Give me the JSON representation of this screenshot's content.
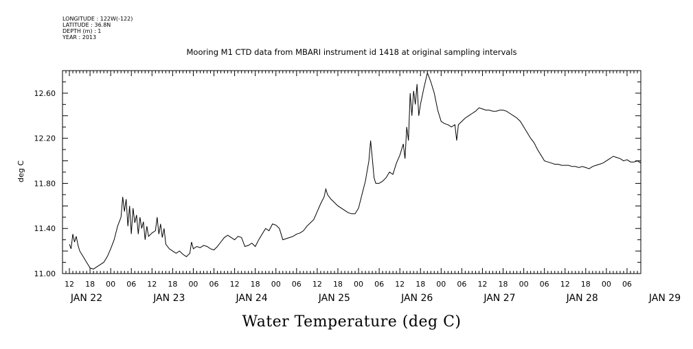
{
  "header": {
    "meta_lines": [
      "LONGITUDE : 122W(-122)",
      "LATITUDE : 36.8N",
      "DEPTH (m) : 1",
      "YEAR : 2013"
    ]
  },
  "chart_data": {
    "type": "line",
    "title": "Mooring M1 CTD data from MBARI instrument id 1418 at original sampling intervals",
    "xlabel": "Water Temperature (deg C)",
    "ylabel": "deg C",
    "x_unit": "hours since Jan 22 12:00 (2013)",
    "xlim": [
      -2,
      166
    ],
    "ylim": [
      11.0,
      12.8
    ],
    "yticks": [
      "11.00",
      "11.40",
      "11.80",
      "12.20",
      "12.60"
    ],
    "ytick_values": [
      11.0,
      11.4,
      11.8,
      12.2,
      12.6
    ],
    "xtick_labels": [
      "12",
      "18",
      "00",
      "06",
      "12",
      "18",
      "00",
      "06",
      "12",
      "18",
      "00",
      "06",
      "12",
      "18",
      "00",
      "06",
      "12",
      "18",
      "00",
      "06",
      "12",
      "18",
      "00",
      "06",
      "12",
      "18",
      "00",
      "06"
    ],
    "day_labels": [
      "JAN 22",
      "JAN 23",
      "JAN 24",
      "JAN 25",
      "JAN 26",
      "JAN 27",
      "JAN 28",
      "JAN 29"
    ],
    "grid": false,
    "line_color": "#000000",
    "series": [
      {
        "points": [
          [
            0,
            11.26
          ],
          [
            0.5,
            11.22
          ],
          [
            1,
            11.35
          ],
          [
            1.5,
            11.28
          ],
          [
            2,
            11.33
          ],
          [
            2.5,
            11.25
          ],
          [
            3,
            11.2
          ],
          [
            4,
            11.15
          ],
          [
            5,
            11.1
          ],
          [
            6,
            11.05
          ],
          [
            7,
            11.04
          ],
          [
            8,
            11.06
          ],
          [
            9,
            11.08
          ],
          [
            10,
            11.1
          ],
          [
            11,
            11.15
          ],
          [
            12,
            11.22
          ],
          [
            13,
            11.3
          ],
          [
            14,
            11.42
          ],
          [
            15,
            11.5
          ],
          [
            15.5,
            11.68
          ],
          [
            16,
            11.55
          ],
          [
            16.5,
            11.66
          ],
          [
            17,
            11.42
          ],
          [
            17.5,
            11.6
          ],
          [
            18,
            11.35
          ],
          [
            18.5,
            11.58
          ],
          [
            19,
            11.45
          ],
          [
            19.5,
            11.52
          ],
          [
            20,
            11.35
          ],
          [
            20.5,
            11.5
          ],
          [
            21,
            11.4
          ],
          [
            21.5,
            11.46
          ],
          [
            22,
            11.3
          ],
          [
            22.5,
            11.42
          ],
          [
            23,
            11.33
          ],
          [
            24,
            11.36
          ],
          [
            25,
            11.38
          ],
          [
            25.5,
            11.5
          ],
          [
            26,
            11.35
          ],
          [
            26.5,
            11.44
          ],
          [
            27,
            11.32
          ],
          [
            27.5,
            11.4
          ],
          [
            28,
            11.26
          ],
          [
            29,
            11.22
          ],
          [
            30,
            11.2
          ],
          [
            31,
            11.18
          ],
          [
            32,
            11.2
          ],
          [
            33,
            11.17
          ],
          [
            34,
            11.15
          ],
          [
            35,
            11.18
          ],
          [
            35.5,
            11.28
          ],
          [
            36,
            11.22
          ],
          [
            37,
            11.24
          ],
          [
            38,
            11.23
          ],
          [
            39,
            11.25
          ],
          [
            40,
            11.24
          ],
          [
            41,
            11.22
          ],
          [
            42,
            11.21
          ],
          [
            43,
            11.24
          ],
          [
            44,
            11.28
          ],
          [
            45,
            11.32
          ],
          [
            46,
            11.34
          ],
          [
            47,
            11.32
          ],
          [
            48,
            11.3
          ],
          [
            49,
            11.33
          ],
          [
            50,
            11.32
          ],
          [
            51,
            11.24
          ],
          [
            52,
            11.25
          ],
          [
            53,
            11.27
          ],
          [
            54,
            11.24
          ],
          [
            55,
            11.3
          ],
          [
            56,
            11.35
          ],
          [
            57,
            11.4
          ],
          [
            58,
            11.38
          ],
          [
            59,
            11.44
          ],
          [
            60,
            11.43
          ],
          [
            61,
            11.4
          ],
          [
            62,
            11.3
          ],
          [
            63,
            11.31
          ],
          [
            64,
            11.32
          ],
          [
            65,
            11.33
          ],
          [
            66,
            11.35
          ],
          [
            67,
            11.36
          ],
          [
            68,
            11.38
          ],
          [
            69,
            11.42
          ],
          [
            70,
            11.45
          ],
          [
            71,
            11.48
          ],
          [
            72,
            11.55
          ],
          [
            73,
            11.62
          ],
          [
            74,
            11.68
          ],
          [
            74.5,
            11.75
          ],
          [
            75,
            11.7
          ],
          [
            76,
            11.66
          ],
          [
            77,
            11.63
          ],
          [
            78,
            11.6
          ],
          [
            79,
            11.58
          ],
          [
            80,
            11.56
          ],
          [
            81,
            11.54
          ],
          [
            82,
            11.53
          ],
          [
            83,
            11.53
          ],
          [
            84,
            11.58
          ],
          [
            85,
            11.7
          ],
          [
            86,
            11.82
          ],
          [
            87,
            12.0
          ],
          [
            87.5,
            12.18
          ],
          [
            88,
            12.02
          ],
          [
            88.5,
            11.85
          ],
          [
            89,
            11.8
          ],
          [
            90,
            11.8
          ],
          [
            91,
            11.82
          ],
          [
            92,
            11.85
          ],
          [
            93,
            11.9
          ],
          [
            94,
            11.88
          ],
          [
            95,
            11.98
          ],
          [
            96,
            12.05
          ],
          [
            97,
            12.15
          ],
          [
            97.5,
            12.02
          ],
          [
            98,
            12.3
          ],
          [
            98.5,
            12.18
          ],
          [
            99,
            12.6
          ],
          [
            99.5,
            12.4
          ],
          [
            100,
            12.62
          ],
          [
            100.5,
            12.5
          ],
          [
            101,
            12.68
          ],
          [
            101.5,
            12.4
          ],
          [
            102,
            12.5
          ],
          [
            103,
            12.65
          ],
          [
            104,
            12.78
          ],
          [
            105,
            12.7
          ],
          [
            106,
            12.6
          ],
          [
            107,
            12.45
          ],
          [
            108,
            12.35
          ],
          [
            109,
            12.33
          ],
          [
            110,
            12.32
          ],
          [
            111,
            12.3
          ],
          [
            112,
            12.32
          ],
          [
            112.5,
            12.18
          ],
          [
            113,
            12.32
          ],
          [
            114,
            12.35
          ],
          [
            115,
            12.38
          ],
          [
            116,
            12.4
          ],
          [
            117,
            12.42
          ],
          [
            118,
            12.44
          ],
          [
            119,
            12.47
          ],
          [
            120,
            12.46
          ],
          [
            121,
            12.45
          ],
          [
            122,
            12.45
          ],
          [
            123,
            12.44
          ],
          [
            124,
            12.44
          ],
          [
            125,
            12.45
          ],
          [
            126,
            12.45
          ],
          [
            127,
            12.44
          ],
          [
            128,
            12.42
          ],
          [
            129,
            12.4
          ],
          [
            130,
            12.38
          ],
          [
            131,
            12.35
          ],
          [
            132,
            12.3
          ],
          [
            133,
            12.25
          ],
          [
            134,
            12.2
          ],
          [
            135,
            12.16
          ],
          [
            136,
            12.1
          ],
          [
            137,
            12.05
          ],
          [
            138,
            12.0
          ],
          [
            139,
            11.99
          ],
          [
            140,
            11.98
          ],
          [
            141,
            11.97
          ],
          [
            142,
            11.97
          ],
          [
            143,
            11.96
          ],
          [
            144,
            11.96
          ],
          [
            145,
            11.96
          ],
          [
            146,
            11.95
          ],
          [
            147,
            11.95
          ],
          [
            148,
            11.94
          ],
          [
            149,
            11.95
          ],
          [
            150,
            11.94
          ],
          [
            151,
            11.93
          ],
          [
            152,
            11.95
          ],
          [
            153,
            11.96
          ],
          [
            154,
            11.97
          ],
          [
            155,
            11.98
          ],
          [
            156,
            12.0
          ],
          [
            157,
            12.02
          ],
          [
            158,
            12.04
          ],
          [
            159,
            12.03
          ],
          [
            160,
            12.02
          ],
          [
            161,
            12.0
          ],
          [
            162,
            12.01
          ],
          [
            163,
            11.99
          ],
          [
            164,
            11.99
          ],
          [
            165,
            12.0
          ],
          [
            166,
            11.98
          ]
        ]
      }
    ]
  }
}
